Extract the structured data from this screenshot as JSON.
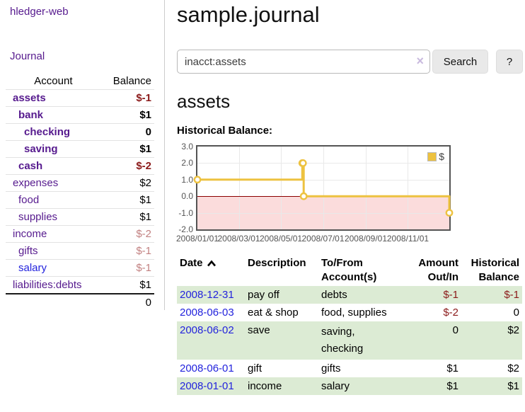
{
  "app": {
    "brand": "hledger-web",
    "nav_journal": "Journal"
  },
  "colors": {
    "link_purple": "#561a8e",
    "link_blue": "#2323dd",
    "negative_strong": "#8b1a1a",
    "negative_faded": "#c28181",
    "row_green": "#dcebd4",
    "series_gold": "#edc240",
    "negative_region_pink": "#fbdcdc",
    "zero_line_red": "#8b0000"
  },
  "sidebar": {
    "headers": {
      "account": "Account",
      "balance": "Balance"
    },
    "rows": [
      {
        "account": "assets",
        "balance": "$-1",
        "indent": 1,
        "bold": true,
        "balance_style": "neg"
      },
      {
        "account": "bank",
        "balance": "$1",
        "indent": 2,
        "bold": true,
        "balance_style": "pos"
      },
      {
        "account": "checking",
        "balance": "0",
        "indent": 3,
        "bold": true,
        "balance_style": "pos"
      },
      {
        "account": "saving",
        "balance": "$1",
        "indent": 3,
        "bold": true,
        "balance_style": "pos"
      },
      {
        "account": "cash",
        "balance": "$-2",
        "indent": 2,
        "bold": true,
        "balance_style": "neg"
      },
      {
        "account": "expenses",
        "balance": "$2",
        "indent": 1,
        "bold": false,
        "balance_style": "pos"
      },
      {
        "account": "food",
        "balance": "$1",
        "indent": 2,
        "bold": false,
        "balance_style": "pos"
      },
      {
        "account": "supplies",
        "balance": "$1",
        "indent": 2,
        "bold": false,
        "balance_style": "pos"
      },
      {
        "account": "income",
        "balance": "$-2",
        "indent": 1,
        "bold": false,
        "balance_style": "neg-faded"
      },
      {
        "account": "gifts",
        "balance": "$-1",
        "indent": 2,
        "bold": false,
        "balance_style": "neg-faded"
      },
      {
        "account": "salary",
        "balance": "$-1",
        "indent": 2,
        "bold": false,
        "balance_style": "neg-faded",
        "link_color": "blue"
      },
      {
        "account": "liabilities:debts",
        "balance": "$1",
        "indent": 1,
        "bold": false,
        "balance_style": "pos"
      }
    ],
    "total": "0"
  },
  "header": {
    "title": "sample.journal"
  },
  "search": {
    "value": "inacct:assets",
    "clear_icon": "×",
    "button_label": "Search",
    "help_label": "?"
  },
  "account_page": {
    "title": "assets",
    "chart_label": "Historical Balance:"
  },
  "chart_data": {
    "type": "line",
    "title": "Historical Balance:",
    "style": "steps",
    "series": [
      {
        "name": "$",
        "color": "#edc240",
        "points": [
          [
            "2008-01-01",
            1
          ],
          [
            "2008-06-01",
            2
          ],
          [
            "2008-06-02",
            2
          ],
          [
            "2008-06-03",
            0
          ],
          [
            "2008-12-31",
            -1
          ]
        ]
      }
    ],
    "x_ticks": [
      "2008/01/01",
      "2008/03/01",
      "2008/05/01",
      "2008/07/01",
      "2008/09/01",
      "2008/11/01"
    ],
    "y_ticks": [
      3.0,
      2.0,
      1.0,
      0.0,
      -1.0,
      -2.0
    ],
    "ylim": [
      -2,
      3
    ],
    "x_start": "2008-01-01",
    "x_end": "2008-12-31",
    "grid": true,
    "legend_position": "top-right",
    "negative_region_shaded": true
  },
  "register": {
    "headers": [
      {
        "lines": [
          "Date"
        ],
        "align": "left",
        "sort_icon": "chevron-up"
      },
      {
        "lines": [
          "Description"
        ],
        "align": "left"
      },
      {
        "lines": [
          "To/From",
          "Account(s)"
        ],
        "align": "left"
      },
      {
        "lines": [
          "Amount",
          "Out/In"
        ],
        "align": "right"
      },
      {
        "lines": [
          "Historical",
          "Balance"
        ],
        "align": "right"
      }
    ],
    "rows": [
      {
        "date": "2008-12-31",
        "description": "pay off",
        "accounts": [
          "debts"
        ],
        "amount": "$-1",
        "amount_neg": true,
        "balance": "$-1",
        "balance_neg": true,
        "green": true
      },
      {
        "date": "2008-06-03",
        "description": "eat & shop",
        "accounts": [
          "food, supplies"
        ],
        "amount": "$-2",
        "amount_neg": true,
        "balance": "0",
        "balance_neg": false,
        "green": false
      },
      {
        "date": "2008-06-02",
        "description": "save",
        "accounts": [
          "saving,",
          "checking"
        ],
        "amount": "0",
        "amount_neg": false,
        "balance": "$2",
        "balance_neg": false,
        "green": true
      },
      {
        "date": "2008-06-01",
        "description": "gift",
        "accounts": [
          "gifts"
        ],
        "amount": "$1",
        "amount_neg": false,
        "balance": "$2",
        "balance_neg": false,
        "green": false
      },
      {
        "date": "2008-01-01",
        "description": "income",
        "accounts": [
          "salary"
        ],
        "amount": "$1",
        "amount_neg": false,
        "balance": "$1",
        "balance_neg": false,
        "green": true
      }
    ]
  }
}
